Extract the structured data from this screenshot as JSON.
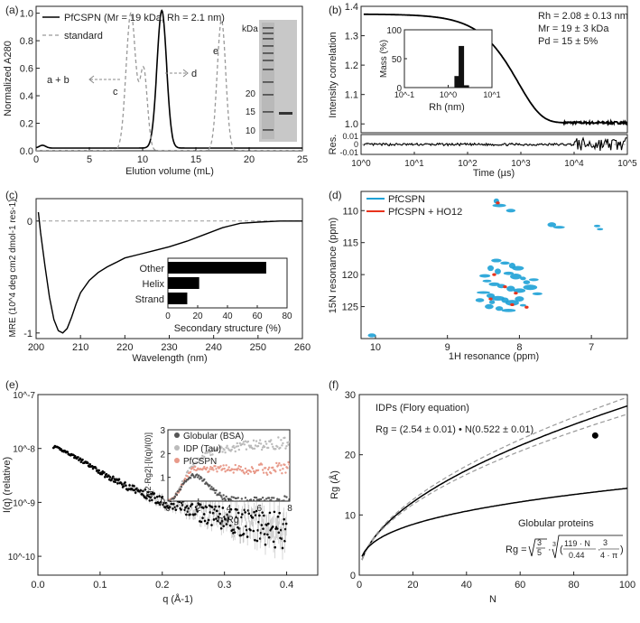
{
  "chart_data": [
    {
      "panel": "(a)",
      "type": "line",
      "xlabel": "Elution volume (mL)",
      "ylabel": "Normalized A280",
      "xlim": [
        0,
        25
      ],
      "ylim": [
        0,
        1.05
      ],
      "xticks": [
        "0",
        "5",
        "10",
        "15",
        "20",
        "25"
      ],
      "yticks": [
        "0.0",
        "0.2",
        "0.4",
        "0.6",
        "0.8",
        "1.0"
      ],
      "legend": [
        "PfCSPN (Mr = 19 kDa, Rh = 2.1 nm)",
        "standard"
      ],
      "series": [
        {
          "name": "PfCSPN",
          "style": "solid",
          "color": "#000000",
          "peaks": [
            {
              "center": 11.8,
              "height": 1.0,
              "width": 0.45
            }
          ],
          "baseline": 0.02
        },
        {
          "name": "standard",
          "style": "dashed",
          "color": "#999999",
          "peaks": [
            {
              "center": 8.9,
              "height": 1.0,
              "width": 0.45
            },
            {
              "center": 10.1,
              "height": 0.58,
              "width": 0.35
            },
            {
              "center": 17.4,
              "height": 0.95,
              "width": 0.4
            }
          ],
          "baseline": 0.0
        }
      ],
      "annotations": [
        "a + b",
        "c",
        "d",
        "e"
      ],
      "gel": {
        "label": "kDa",
        "markers": [
          "20",
          "15",
          "10"
        ]
      }
    },
    {
      "panel": "(b)",
      "type": "line",
      "xlabel": "Time (µs)",
      "ylabel": "Intensity correlation",
      "xlim_log10": [
        0,
        5
      ],
      "ylim": [
        0.97,
        1.4
      ],
      "yticks": [
        "1.0",
        "1.1",
        "1.2",
        "1.3",
        "1.4"
      ],
      "xticks": [
        "10^0",
        "10^1",
        "10^2",
        "10^3",
        "10^4",
        "10^5"
      ],
      "fit": {
        "baseline": 1.0,
        "amplitude": 0.375,
        "decay_time_us": 1800
      },
      "stats": [
        "Rh = 2.08 ± 0.13 nm",
        "Mr = 19 ± 3 kDa",
        "Pd = 15 ± 5%"
      ],
      "residual_label": "Res.",
      "residual_ticks": [
        "0.01",
        "0",
        "-0.01"
      ],
      "inset": {
        "type": "bar",
        "xlabel": "Rh (nm)",
        "ylabel": "Mass (%)",
        "ylim": [
          0,
          100
        ],
        "yticks": [
          "0",
          "50",
          "100"
        ],
        "xticks": [
          "10^-1",
          "10^0",
          "10^1"
        ],
        "bars": [
          {
            "x": 1.6,
            "value": 20
          },
          {
            "x": 2.0,
            "value": 72
          },
          {
            "x": 2.6,
            "value": 4
          }
        ]
      }
    },
    {
      "panel": "(c)",
      "type": "line",
      "xlabel": "Wavelength (nm)",
      "ylabel": "MRE (10^4 deg cm2 dmol-1 res-1)",
      "xlim": [
        200,
        260
      ],
      "ylim": [
        -1.05,
        0.2
      ],
      "xticks": [
        "200",
        "210",
        "220",
        "230",
        "240",
        "250",
        "260"
      ],
      "yticks": [
        "0",
        "-1"
      ],
      "points": [
        [
          200.5,
          0.08
        ],
        [
          201,
          -0.1
        ],
        [
          202,
          -0.4
        ],
        [
          203,
          -0.68
        ],
        [
          204,
          -0.88
        ],
        [
          205,
          -0.98
        ],
        [
          206,
          -1.0
        ],
        [
          207,
          -0.96
        ],
        [
          208,
          -0.86
        ],
        [
          209,
          -0.74
        ],
        [
          210,
          -0.64
        ],
        [
          212,
          -0.53
        ],
        [
          214,
          -0.46
        ],
        [
          216,
          -0.41
        ],
        [
          218,
          -0.37
        ],
        [
          220,
          -0.33
        ],
        [
          223,
          -0.3
        ],
        [
          226,
          -0.27
        ],
        [
          230,
          -0.23
        ],
        [
          234,
          -0.18
        ],
        [
          238,
          -0.12
        ],
        [
          242,
          -0.06
        ],
        [
          246,
          -0.02
        ],
        [
          250,
          -0.01
        ],
        [
          255,
          0.0
        ],
        [
          260,
          0.0
        ]
      ],
      "inset": {
        "type": "bar",
        "orientation": "horizontal",
        "xlabel": "Secondary structure (%)",
        "xlim": [
          0,
          80
        ],
        "xticks": [
          "0",
          "20",
          "40",
          "60",
          "80"
        ],
        "categories": [
          "Other",
          "Helix",
          "Strand"
        ],
        "values": [
          66,
          21,
          13
        ]
      }
    },
    {
      "panel": "(d)",
      "type": "scatter",
      "xlabel": "1H resonance (ppm)",
      "ylabel": "15N resonance (ppm)",
      "xlim": [
        10.2,
        6.5
      ],
      "ylim": [
        130,
        107
      ],
      "xticks": [
        "10",
        "9",
        "8",
        "7"
      ],
      "yticks": [
        "110",
        "115",
        "120",
        "125"
      ],
      "legend": [
        "PfCSPN",
        "PfCSPN + HO12"
      ],
      "colors": [
        "#1da1d6",
        "#e8331c"
      ],
      "peaks_blue": [
        [
          8.32,
          108.5
        ],
        [
          8.28,
          109.2
        ],
        [
          8.12,
          110.0
        ],
        [
          7.55,
          112.2
        ],
        [
          7.45,
          112.6
        ],
        [
          6.92,
          112.4
        ],
        [
          6.88,
          112.9
        ],
        [
          8.32,
          117.8
        ],
        [
          8.2,
          118.2
        ],
        [
          8.1,
          118.6
        ],
        [
          8.4,
          119.0
        ],
        [
          8.3,
          119.5
        ],
        [
          8.15,
          119.8
        ],
        [
          8.05,
          120.3
        ],
        [
          7.95,
          120.6
        ],
        [
          8.45,
          121.0
        ],
        [
          8.35,
          121.5
        ],
        [
          8.25,
          121.8
        ],
        [
          8.12,
          122.2
        ],
        [
          8.0,
          122.5
        ],
        [
          7.9,
          121.2
        ],
        [
          7.85,
          122.0
        ],
        [
          8.5,
          122.8
        ],
        [
          8.4,
          123.3
        ],
        [
          8.3,
          123.7
        ],
        [
          8.2,
          124.0
        ],
        [
          8.1,
          124.4
        ],
        [
          8.0,
          123.8
        ],
        [
          7.95,
          124.8
        ],
        [
          8.42,
          125.0
        ],
        [
          8.28,
          125.3
        ],
        [
          8.15,
          125.6
        ],
        [
          8.48,
          120.2
        ],
        [
          8.02,
          119.0
        ],
        [
          7.8,
          120.8
        ],
        [
          7.75,
          123.0
        ],
        [
          8.38,
          124.3
        ],
        [
          8.55,
          124.0
        ],
        [
          10.05,
          129.5
        ]
      ],
      "peaks_red": [
        [
          8.3,
          108.8
        ],
        [
          8.35,
          120.0
        ],
        [
          8.2,
          121.9
        ],
        [
          8.05,
          122.9
        ],
        [
          8.4,
          123.8
        ],
        [
          8.1,
          124.7
        ],
        [
          7.9,
          125.1
        ]
      ]
    },
    {
      "panel": "(e)",
      "type": "scatter",
      "xlabel": "q (Å-1)",
      "ylabel": "I(q) (relative)",
      "xlim": [
        0,
        0.45
      ],
      "ylim_log10": [
        -10.35,
        -7
      ],
      "xticks": [
        "0.0",
        "0.1",
        "0.2",
        "0.3",
        "0.4"
      ],
      "yticks": [
        "10^-7",
        "10^-8",
        "10^-9",
        "10^-10"
      ],
      "model": {
        "I0": 1.2e-08,
        "Rg_A": 23,
        "q_min": 0.025,
        "q_max": 0.4,
        "noise": "increasing with q"
      },
      "inset": {
        "type": "scatter",
        "xlabel": "q·Rg",
        "ylabel": "[q2·Rg2]·[I(q)/I(0)]",
        "xlim": [
          0,
          8
        ],
        "ylim": [
          0,
          3
        ],
        "xticks": [
          "0",
          "2",
          "4",
          "6",
          "8"
        ],
        "yticks": [
          "0",
          "1",
          "2",
          "3"
        ],
        "legend": [
          "Globular (BSA)",
          "IDP (Tau)",
          "PfCSPN"
        ],
        "colors": [
          "#555555",
          "#bbbbbb",
          "#e89a8a"
        ]
      }
    },
    {
      "panel": "(f)",
      "type": "line",
      "xlabel": "N",
      "ylabel": "Rg (Å)",
      "xlim": [
        0,
        100
      ],
      "ylim": [
        0,
        30
      ],
      "xticks": [
        "0",
        "20",
        "40",
        "60",
        "80",
        "100"
      ],
      "yticks": [
        "0",
        "10",
        "20",
        "30"
      ],
      "series": [
        {
          "name": "IDP Flory",
          "R0": 2.54,
          "nu": 0.522,
          "style": "solid"
        },
        {
          "name": "IDP upper",
          "R0": 2.55,
          "nu": 0.532,
          "style": "dashed"
        },
        {
          "name": "IDP lower",
          "R0": 2.53,
          "nu": 0.512,
          "style": "dashed"
        },
        {
          "name": "Globular",
          "formula": "sqrt(3/5)*cbrt(3*119*N/(0.44*4*pi))",
          "style": "solid"
        }
      ],
      "point": {
        "N": 88,
        "Rg": 23.2
      },
      "annotations": [
        "IDPs (Flory equation)",
        "Rg = (2.54 ± 0.01) • N(0.522 ± 0.01)",
        "Globular proteins"
      ]
    }
  ],
  "panel_labels": [
    "(a)",
    "(b)",
    "(c)",
    "(d)",
    "(e)",
    "(f)"
  ]
}
